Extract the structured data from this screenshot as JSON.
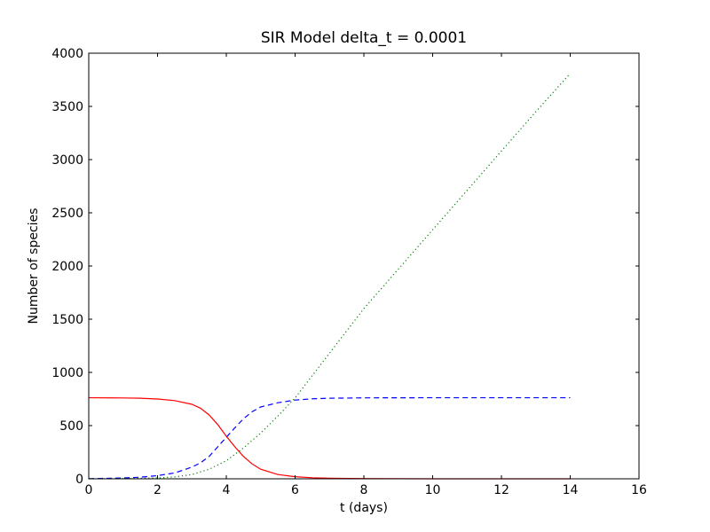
{
  "chart_data": {
    "type": "line",
    "title": "SIR Model delta_t = 0.0001",
    "xlabel": "t (days)",
    "ylabel": "Number of species",
    "xlim": [
      0,
      16
    ],
    "ylim": [
      0,
      4000
    ],
    "xticks": [
      0,
      2,
      4,
      6,
      8,
      10,
      12,
      14,
      16
    ],
    "yticks": [
      0,
      500,
      1000,
      1500,
      2000,
      2500,
      3000,
      3500,
      4000
    ],
    "grid": false,
    "legend": "none",
    "series": [
      {
        "color": "#ff0000",
        "style": "solid",
        "x": [
          0,
          1,
          1.5,
          2,
          2.5,
          3,
          3.25,
          3.5,
          3.75,
          4,
          4.25,
          4.5,
          4.75,
          5,
          5.5,
          6,
          6.5,
          7,
          8,
          10,
          12,
          14
        ],
        "y": [
          762,
          760,
          757,
          750,
          735,
          700,
          663,
          600,
          510,
          400,
          300,
          210,
          140,
          90,
          40,
          20,
          10,
          5,
          2,
          0,
          0,
          0
        ]
      },
      {
        "color": "#0000ff",
        "style": "dashed",
        "x": [
          0,
          1,
          1.5,
          2,
          2.5,
          3,
          3.25,
          3.5,
          3.75,
          4,
          4.25,
          4.5,
          4.75,
          5,
          5.5,
          6,
          6.5,
          7,
          8,
          10,
          12,
          14
        ],
        "y": [
          1,
          8,
          15,
          30,
          55,
          110,
          150,
          210,
          300,
          390,
          480,
          565,
          630,
          675,
          715,
          740,
          752,
          757,
          761,
          762,
          762,
          762
        ]
      },
      {
        "color": "#008000",
        "style": "dotted",
        "x": [
          0,
          1,
          2,
          2.5,
          3,
          3.5,
          4,
          4.5,
          5,
          5.5,
          6,
          7,
          8,
          9,
          10,
          11,
          12,
          13,
          14
        ],
        "y": [
          0,
          2,
          8,
          18,
          40,
          90,
          170,
          290,
          430,
          590,
          760,
          1180,
          1600,
          1970,
          2340,
          2710,
          3080,
          3450,
          3810
        ]
      }
    ]
  }
}
